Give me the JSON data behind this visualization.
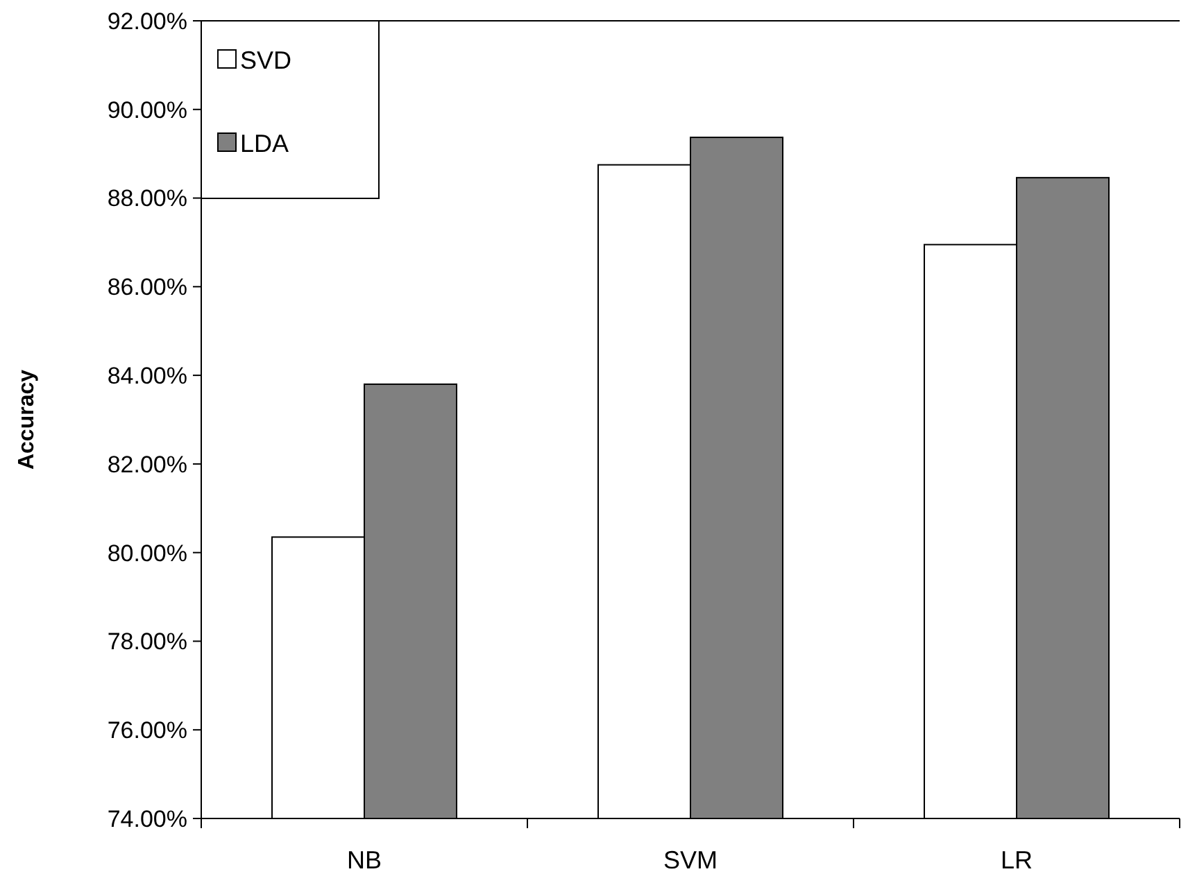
{
  "chart_data": {
    "type": "bar",
    "ylabel": "Accuracy",
    "categories": [
      "NB",
      "SVM",
      "LR"
    ],
    "series": [
      {
        "name": "SVD",
        "color": "#ffffff",
        "values": [
          80.35,
          88.75,
          86.95
        ]
      },
      {
        "name": "LDA",
        "color": "#808080",
        "values": [
          83.8,
          89.37,
          88.46
        ]
      }
    ],
    "ylim": [
      74,
      92
    ],
    "yticks": [
      {
        "value": 74,
        "label": "74.00%"
      },
      {
        "value": 76,
        "label": "76.00%"
      },
      {
        "value": 78,
        "label": "78.00%"
      },
      {
        "value": 80,
        "label": "80.00%"
      },
      {
        "value": 82,
        "label": "82.00%"
      },
      {
        "value": 84,
        "label": "84.00%"
      },
      {
        "value": 86,
        "label": "86.00%"
      },
      {
        "value": 88,
        "label": "88.00%"
      },
      {
        "value": 90,
        "label": "90.00%"
      },
      {
        "value": 92,
        "label": "92.00%"
      }
    ],
    "grid": false,
    "legend": "top left"
  }
}
